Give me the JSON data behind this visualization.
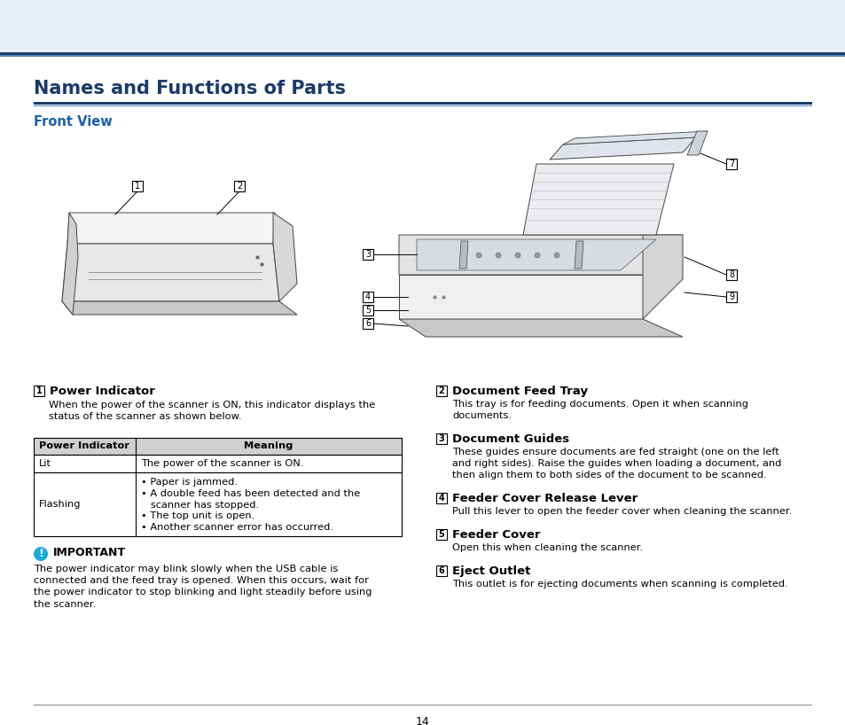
{
  "title": "Names and Functions of Parts",
  "subtitle": "Front View",
  "bg_color": "#ffffff",
  "title_color": "#1a3a6b",
  "subtitle_color": "#1a5fa8",
  "dark_blue": "#1a3a6b",
  "mid_blue": "#2e6da4",
  "light_blue_bar": "#c8d8f0",
  "body_font_size": 8.5,
  "title_font_size": 15,
  "subtitle_font_size": 10.5,
  "page_number": "14",
  "section1_title": "Power Indicator",
  "section1_body1": "When the power of the scanner is ON, this indicator displays the\nstatus of the scanner as shown below.",
  "table_headers": [
    "Power Indicator",
    "Meaning"
  ],
  "table_row1": [
    "Lit",
    "The power of the scanner is ON."
  ],
  "table_row2_left": "Flashing",
  "table_row2_right": "• Paper is jammed.\n• A double feed has been detected and the\n   scanner has stopped.\n• The top unit is open.\n• Another scanner error has occurred.",
  "important_label": "IMPORTANT",
  "important_text": "The power indicator may blink slowly when the USB cable is\nconnected and the feed tray is opened. When this occurs, wait for\nthe power indicator to stop blinking and light steadily before using\nthe scanner.",
  "section2_title": "Document Feed Tray",
  "section2_body": "This tray is for feeding documents. Open it when scanning\ndocuments.",
  "section3_title": "Document Guides",
  "section3_body": "These guides ensure documents are fed straight (one on the left\nand right sides). Raise the guides when loading a document, and\nthen align them to both sides of the document to be scanned.",
  "section4_title": "Feeder Cover Release Lever",
  "section4_body": "Pull this lever to open the feeder cover when cleaning the scanner.",
  "section5_title": "Feeder Cover",
  "section5_body": "Open this when cleaning the scanner.",
  "section6_title": "Eject Outlet",
  "section6_body": "This outlet is for ejecting documents when scanning is completed."
}
